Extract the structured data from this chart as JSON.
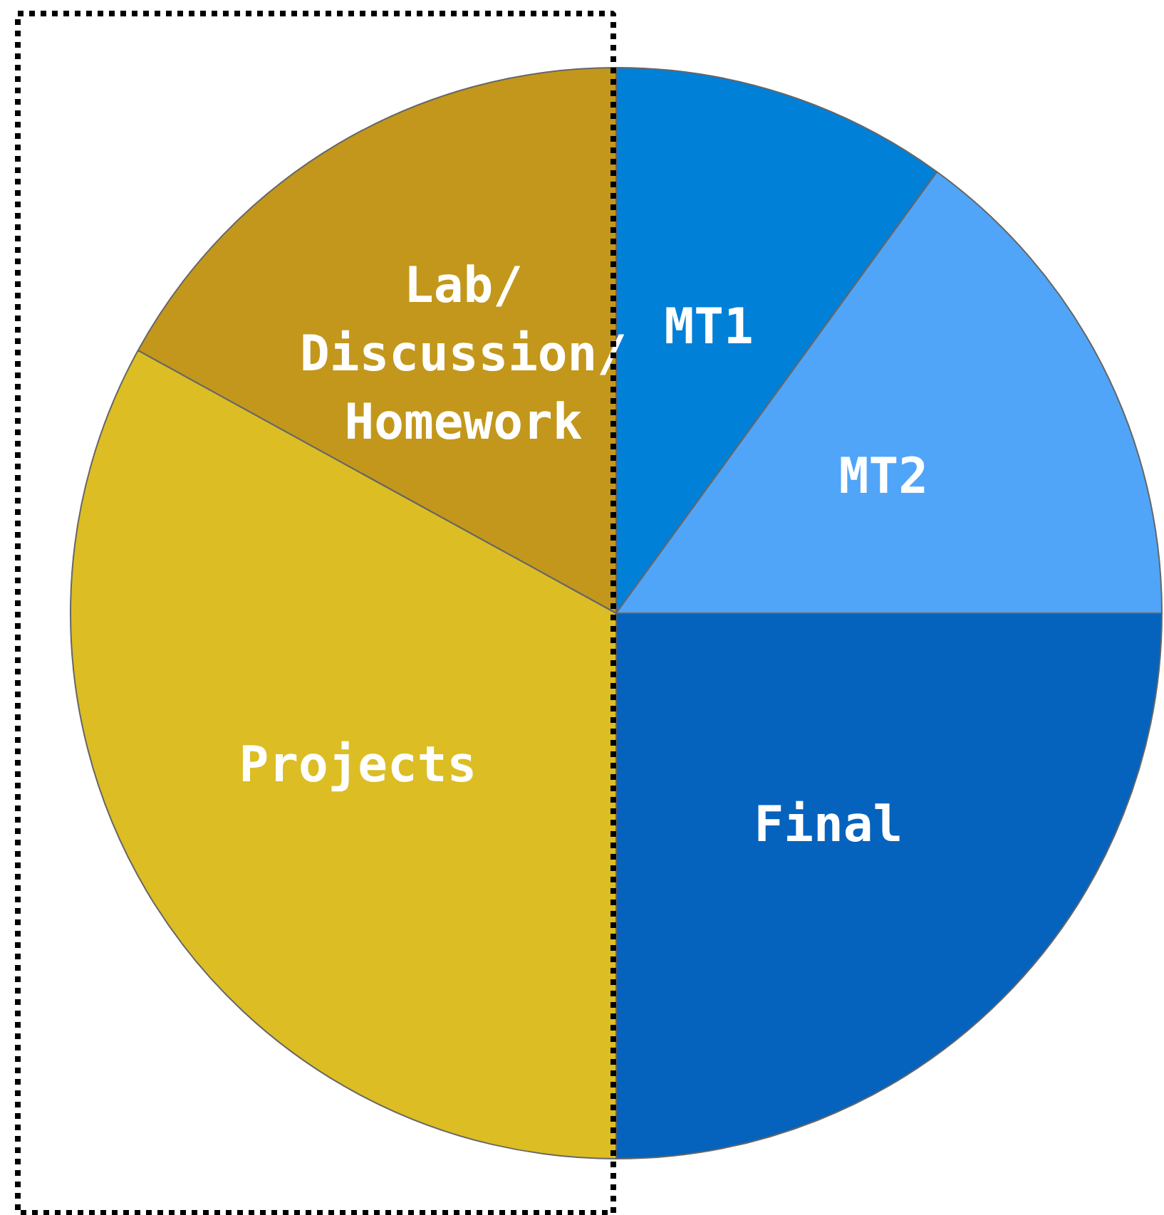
{
  "chart_data": {
    "type": "pie",
    "categories": [
      "MT1",
      "MT2",
      "Final",
      "Projects",
      "Lab/\nDiscussion/\nHomework"
    ],
    "values": [
      10,
      15,
      25,
      33,
      17
    ],
    "colors": [
      "#0180d8",
      "#50a5f8",
      "#0563bd",
      "#dcbd24",
      "#c3971b"
    ]
  }
}
